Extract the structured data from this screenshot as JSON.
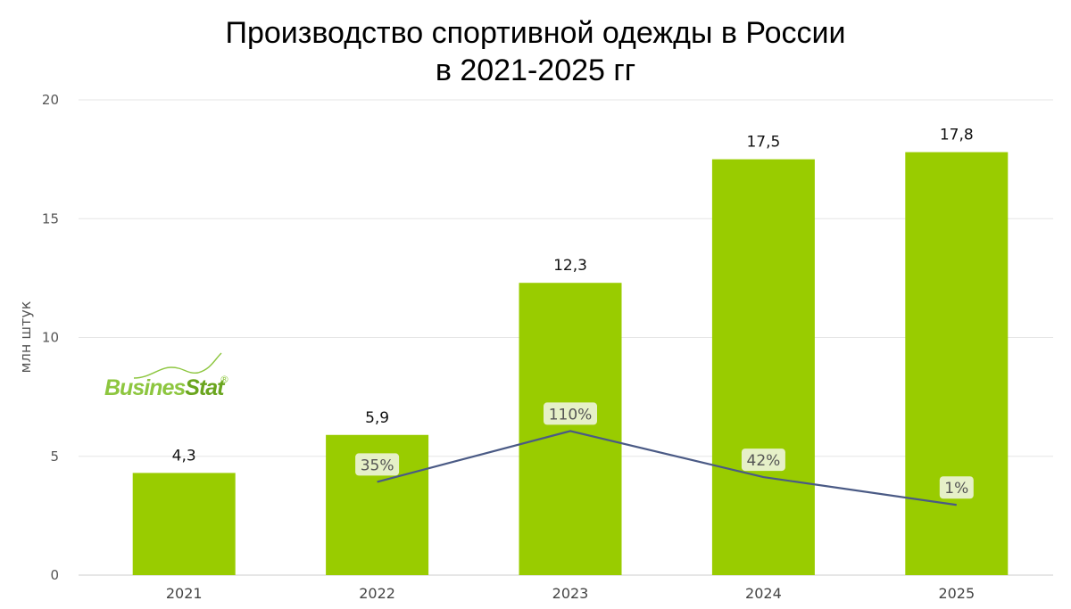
{
  "chart_data": {
    "type": "bar",
    "title": [
      "Производство спортивной одежды в России",
      "в 2021-2025 гг"
    ],
    "ylabel": "млн штук",
    "ylim": [
      0,
      20
    ],
    "yticks": [
      "0",
      "5",
      "10",
      "15",
      "20"
    ],
    "grid": true,
    "categories": [
      "2021",
      "2022",
      "2023",
      "2024",
      "2025"
    ],
    "values": [
      4.3,
      5.9,
      12.3,
      17.5,
      17.8
    ],
    "value_labels": [
      "4,3",
      "5,9",
      "12,3",
      "17,5",
      "17,8"
    ],
    "bar_color": "#99cc00",
    "growth": {
      "type": "line",
      "categories": [
        "2022",
        "2023",
        "2024",
        "2025"
      ],
      "values": [
        35,
        110,
        42,
        1
      ],
      "labels": [
        "35%",
        "110%",
        "42%",
        "1%"
      ],
      "line_color": "#4a5a85",
      "label_bg": "#e6f0c8"
    },
    "logo": {
      "text_a": "Busines",
      "text_b": "Stat",
      "mark": "®",
      "color": "#8dc63f"
    }
  }
}
